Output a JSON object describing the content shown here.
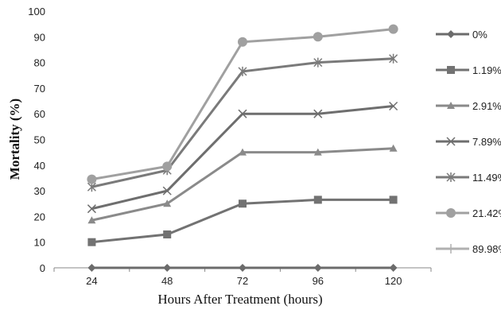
{
  "chart_data": {
    "type": "line",
    "title": "",
    "xlabel": "Hours After Treatment (hours)",
    "ylabel": "Mortality (%)",
    "x": [
      24,
      48,
      72,
      96,
      120
    ],
    "ylim": [
      0,
      100
    ],
    "yticks": [
      0,
      10,
      20,
      30,
      40,
      50,
      60,
      70,
      80,
      90,
      100
    ],
    "grid": false,
    "legend_position": "right",
    "series": [
      {
        "name": "0%",
        "marker": "diamond",
        "color": "#6b6b6b",
        "values": [
          0,
          0,
          0,
          0,
          0
        ]
      },
      {
        "name": "1.19%",
        "marker": "square",
        "color": "#727272",
        "values": [
          10,
          13,
          25,
          26.5,
          26.5
        ]
      },
      {
        "name": "2.91%",
        "marker": "triangle",
        "color": "#8a8a8a",
        "values": [
          18.5,
          25,
          45,
          45,
          46.5
        ]
      },
      {
        "name": "7.89%",
        "marker": "x",
        "color": "#6e6e6e",
        "values": [
          23,
          30,
          60,
          60,
          63
        ]
      },
      {
        "name": "11.49%",
        "marker": "asterisk",
        "color": "#7a7a7a",
        "values": [
          31.5,
          38,
          76.5,
          80,
          81.5
        ]
      },
      {
        "name": "21.42%",
        "marker": "circle",
        "color": "#a0a0a0",
        "values": [
          34.5,
          39.5,
          88,
          90,
          93
        ]
      },
      {
        "name": "89.98%",
        "marker": "plus",
        "color": "#b0b0b0",
        "values": [
          null,
          null,
          null,
          null,
          null
        ]
      }
    ]
  }
}
